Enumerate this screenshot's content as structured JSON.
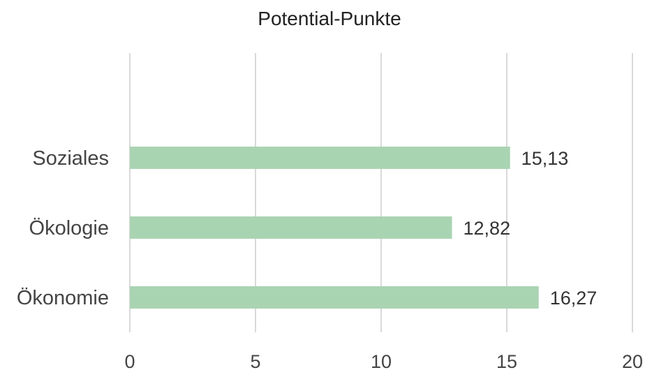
{
  "chart_data": {
    "type": "bar",
    "orientation": "horizontal",
    "title": "Potential-Punkte",
    "categories": [
      "Soziales",
      "Ökologie",
      "Ökonomie"
    ],
    "values": [
      15.13,
      12.82,
      16.27
    ],
    "value_labels": [
      "15,13",
      "12,82",
      "16,27"
    ],
    "xlim": [
      0,
      20
    ],
    "x_ticks": [
      0,
      5,
      10,
      15,
      20
    ],
    "x_tick_labels": [
      "0",
      "5",
      "10",
      "15",
      "20"
    ],
    "grid": true,
    "legend": "none",
    "bar_color": "#a9d4b2"
  }
}
